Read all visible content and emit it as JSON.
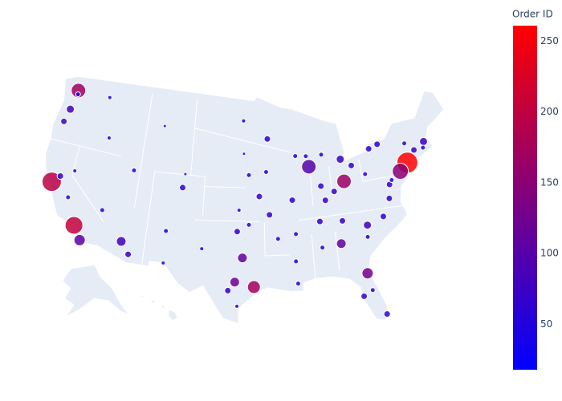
{
  "chart_data": {
    "type": "scattergeo",
    "scope": "usa",
    "lon": [
      -74,
      -75.2,
      -118.2,
      -122.4,
      -122.3,
      -117.1,
      -87.6,
      -83,
      -95.4,
      -96.8,
      -81.7,
      -84.4,
      -112,
      -71.1,
      -83.1,
      -105,
      -93.3,
      -97.7,
      -98.5,
      -122.7,
      -121.5,
      -122.2,
      -86.8,
      -90,
      -90.1,
      -80.2,
      -82.5,
      -80.8,
      -78.6,
      -77.4,
      -77,
      -76.6,
      -80,
      -81.7,
      -78.9,
      -86.2,
      -85.8,
      -90.2,
      -94.6,
      -97.5,
      -96,
      -96,
      -87.9,
      -111.9,
      -106.6,
      -106.5,
      -110.9,
      -115.1,
      -119.8,
      -116.2,
      -117.4,
      -96.8,
      -86.8,
      -90.2,
      -92.3,
      -72.7,
      -71.4,
      -73.8,
      -77.6,
      -85.7,
      -89.4,
      -93.6,
      -93.3,
      -97.3,
      -101.9,
      -97.4,
      -81.4,
      -81,
      -83.9,
      -84.5,
      -119.8,
      -123.1,
      -108.5,
      -104.8,
      -96.7
    ],
    "lat": [
      40.7,
      40,
      34.05,
      37.8,
      47.6,
      32.7,
      41.9,
      40,
      29.8,
      32.8,
      30.3,
      33.7,
      33.4,
      42.4,
      42.3,
      39.7,
      45,
      30.3,
      29.4,
      45.5,
      38.6,
      47.2,
      36.2,
      35.1,
      30,
      25.8,
      28,
      35.2,
      35.8,
      37.5,
      38.9,
      39.3,
      40.4,
      41.5,
      42.9,
      39.8,
      38.3,
      38.6,
      39.1,
      35.5,
      36.2,
      41.3,
      43,
      40.8,
      35.1,
      31.8,
      32.2,
      36.2,
      36.7,
      43.6,
      47.7,
      46.9,
      33.5,
      32.3,
      34.7,
      41.8,
      41.8,
      42.7,
      43.2,
      43,
      43.1,
      41.6,
      37.2,
      37.7,
      33.6,
      27.8,
      28.5,
      34,
      36,
      39.1,
      39.5,
      44.1,
      45.8,
      41.1,
      43.5
    ],
    "sizes": [
      26,
      20,
      22,
      24,
      18,
      14,
      18,
      18,
      16,
      12,
      14,
      12,
      12,
      10,
      10,
      8,
      8,
      12,
      8,
      10,
      8,
      6,
      8,
      6,
      6,
      8,
      8,
      10,
      8,
      8,
      8,
      6,
      6,
      8,
      8,
      8,
      8,
      8,
      8,
      8,
      6,
      6,
      6,
      6,
      6,
      5,
      8,
      6,
      6,
      5,
      5,
      5,
      6,
      6,
      6,
      8,
      6,
      6,
      8,
      6,
      6,
      6,
      8,
      5,
      5,
      5,
      6,
      6,
      8,
      8,
      5,
      8,
      4,
      4,
      4
    ],
    "color_values": [
      261,
      150,
      205,
      195,
      170,
      105,
      100,
      165,
      175,
      110,
      130,
      110,
      80,
      70,
      70,
      55,
      60,
      120,
      70,
      80,
      60,
      50,
      60,
      50,
      50,
      60,
      70,
      80,
      60,
      60,
      70,
      50,
      50,
      70,
      60,
      60,
      70,
      60,
      70,
      60,
      50,
      40,
      50,
      40,
      40,
      40,
      70,
      40,
      50,
      30,
      30,
      30,
      50,
      50,
      50,
      70,
      50,
      50,
      60,
      50,
      50,
      50,
      70,
      30,
      30,
      40,
      50,
      50,
      70,
      70,
      40,
      70,
      30,
      30,
      30
    ],
    "colorscale": [
      "#0000ff",
      "#ff0000"
    ],
    "marker_line_color": "#ffffff",
    "colorbar": {
      "title": "Order ID",
      "range": [
        18,
        261
      ],
      "ticks": [
        50,
        100,
        150,
        200,
        250
      ]
    }
  }
}
